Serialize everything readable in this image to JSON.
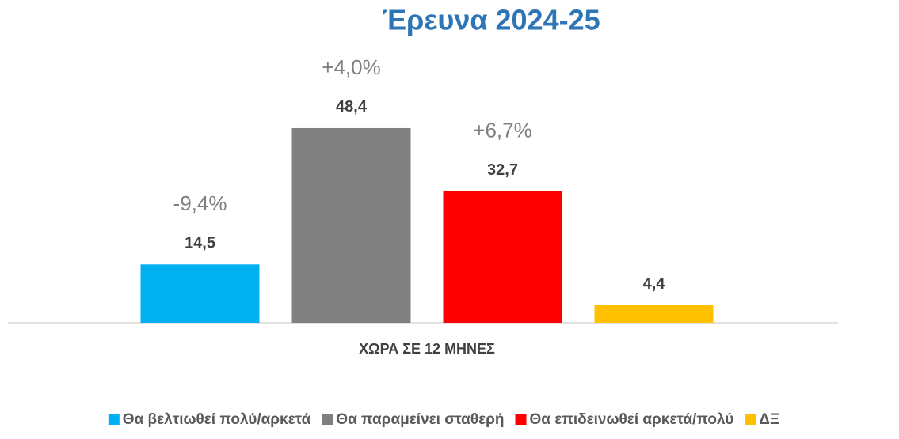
{
  "chart_data": {
    "type": "bar",
    "title": "Έρευνα 2024-25",
    "categories": [
      "ΧΩΡΑ ΣΕ 12 ΜΗΝΕΣ"
    ],
    "series": [
      {
        "name": "Θα βελτιωθεί πολύ/αρκετά",
        "color": "#00b0f0",
        "values": [
          14.5
        ],
        "value_labels": [
          "14,5"
        ],
        "annotations": [
          "-9,4%"
        ]
      },
      {
        "name": "Θα παραμείνει σταθερή",
        "color": "#808080",
        "values": [
          48.4
        ],
        "value_labels": [
          "48,4"
        ],
        "annotations": [
          "+4,0%"
        ]
      },
      {
        "name": "Θα επιδεινωθεί αρκετά/πολύ",
        "color": "#ff0000",
        "values": [
          32.7
        ],
        "value_labels": [
          "32,7"
        ],
        "annotations": [
          "+6,7%"
        ]
      },
      {
        "name": "ΔΞ",
        "color": "#ffc000",
        "values": [
          4.4
        ],
        "value_labels": [
          "4,4"
        ],
        "annotations": [
          null
        ]
      }
    ],
    "ylim": [
      0,
      60
    ],
    "legend": "bottom"
  }
}
